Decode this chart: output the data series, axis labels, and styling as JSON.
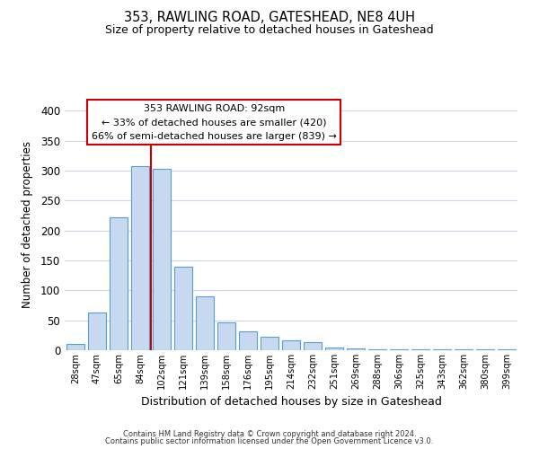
{
  "title": "353, RAWLING ROAD, GATESHEAD, NE8 4UH",
  "subtitle": "Size of property relative to detached houses in Gateshead",
  "xlabel": "Distribution of detached houses by size in Gateshead",
  "ylabel": "Number of detached properties",
  "bar_labels": [
    "28sqm",
    "47sqm",
    "65sqm",
    "84sqm",
    "102sqm",
    "121sqm",
    "139sqm",
    "158sqm",
    "176sqm",
    "195sqm",
    "214sqm",
    "232sqm",
    "251sqm",
    "269sqm",
    "288sqm",
    "306sqm",
    "325sqm",
    "343sqm",
    "362sqm",
    "380sqm",
    "399sqm"
  ],
  "bar_values": [
    10,
    63,
    222,
    307,
    303,
    140,
    90,
    46,
    31,
    23,
    16,
    13,
    5,
    3,
    2,
    1,
    1,
    1,
    1,
    1,
    1
  ],
  "bar_color": "#c6d9f0",
  "bar_edge_color": "#5b9bd5",
  "vline_x": 3.5,
  "vline_color": "#cc0000",
  "ylim": [
    0,
    420
  ],
  "yticks": [
    0,
    50,
    100,
    150,
    200,
    250,
    300,
    350,
    400
  ],
  "annotation_title": "353 RAWLING ROAD: 92sqm",
  "annotation_line1": "← 33% of detached houses are smaller (420)",
  "annotation_line2": "66% of semi-detached houses are larger (839) →",
  "annotation_box_color": "#ffffff",
  "annotation_box_edge": "#cc0000",
  "footer1": "Contains HM Land Registry data © Crown copyright and database right 2024.",
  "footer2": "Contains public sector information licensed under the Open Government Licence v3.0.",
  "background_color": "#ffffff",
  "grid_color": "#d0d8e8"
}
